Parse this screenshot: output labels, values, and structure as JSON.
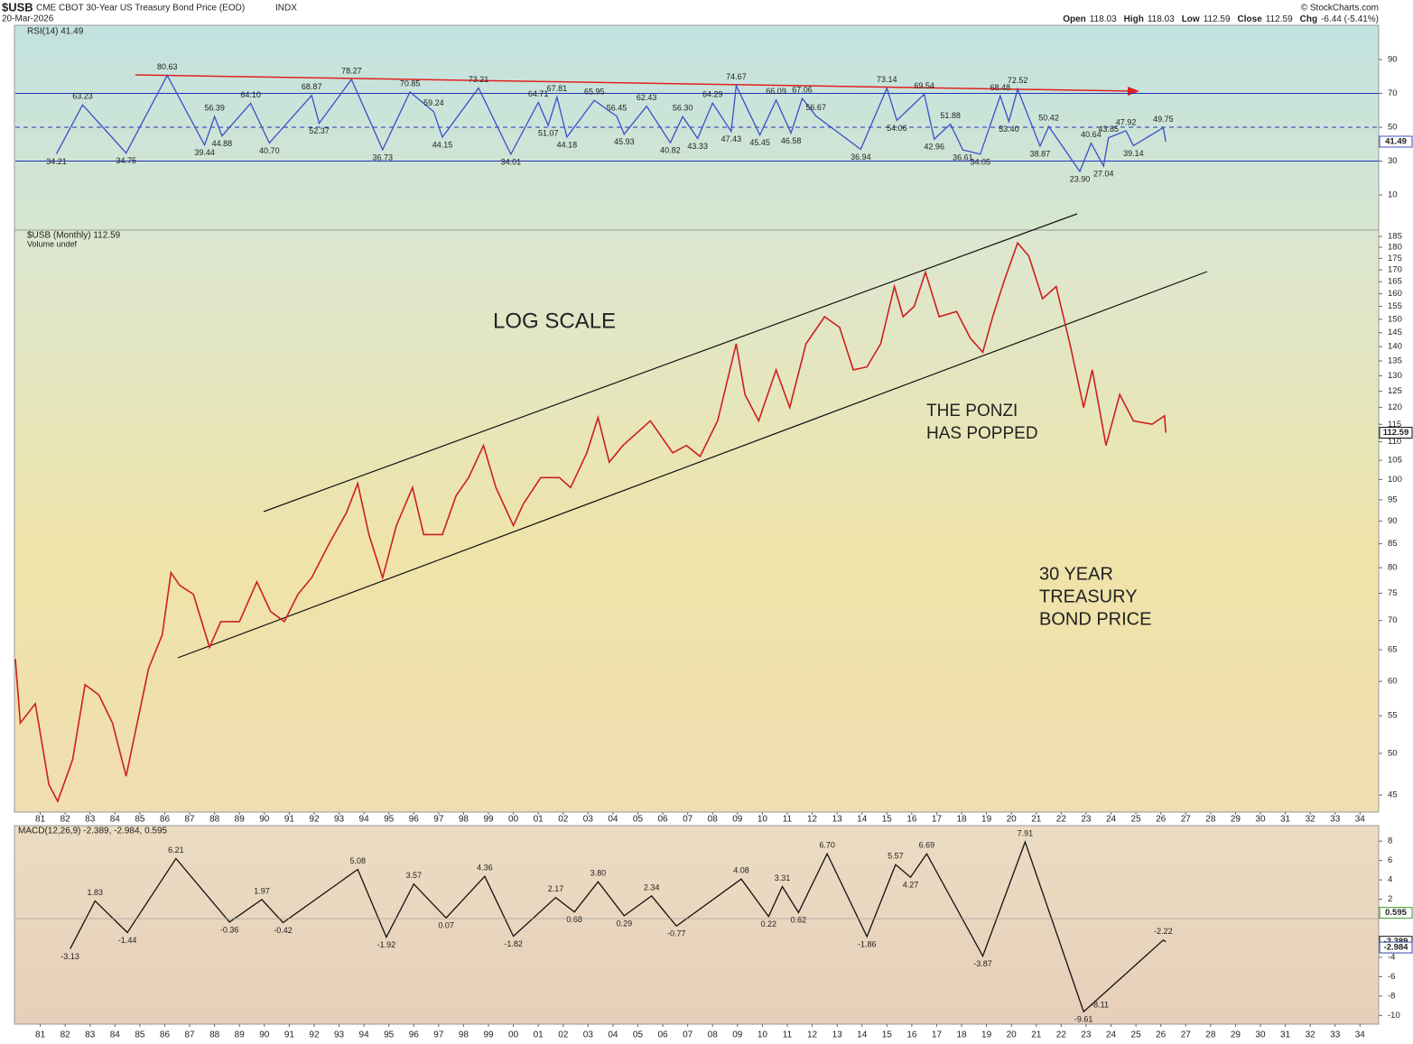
{
  "header": {
    "symbol": "$USB",
    "description": "CME CBOT 30-Year US Treasury Bond Price (EOD)",
    "exchange": "INDX",
    "date": "20-Mar-2026",
    "quote": [
      {
        "label": "Open",
        "value": "118.03"
      },
      {
        "label": "High",
        "value": "118.03"
      },
      {
        "label": "Low",
        "value": "112.59"
      },
      {
        "label": "Close",
        "value": "112.59"
      },
      {
        "label": "Chg",
        "value": "-6.44 (-5.41%)"
      }
    ],
    "copyright": "© StockCharts.com"
  },
  "chart_data": [
    {
      "type": "line",
      "title": "RSI(14) 41.49",
      "color": "#3a4fc8",
      "ylim": [
        -10.8,
        110.3
      ],
      "yticks": [
        10,
        30,
        50,
        70,
        90
      ],
      "levels": [
        30,
        50,
        70
      ],
      "x": [
        1981.65,
        1982.7,
        1984.45,
        1986.1,
        1987.6,
        1988.0,
        1988.3,
        1989.45,
        1990.2,
        1991.9,
        1992.2,
        1993.5,
        1994.75,
        1995.85,
        1996.8,
        1997.15,
        1998.6,
        1999.9,
        2001.0,
        2001.4,
        2001.75,
        2002.15,
        2003.25,
        2004.15,
        2004.45,
        2005.35,
        2006.3,
        2006.8,
        2007.4,
        2008.0,
        2008.75,
        2008.95,
        2009.9,
        2010.55,
        2011.15,
        2011.6,
        2012.15,
        2013.95,
        2015.0,
        2015.4,
        2016.5,
        2016.9,
        2017.55,
        2018.05,
        2018.75,
        2019.55,
        2019.9,
        2020.25,
        2021.15,
        2021.5,
        2022.75,
        2023.2,
        2023.7,
        2023.9,
        2024.6,
        2024.9,
        2026.1,
        2026.2
      ],
      "values": [
        34.21,
        63.23,
        34.75,
        80.63,
        39.44,
        56.39,
        44.88,
        64.1,
        40.7,
        68.87,
        52.37,
        78.27,
        36.73,
        70.85,
        59.24,
        44.15,
        73.21,
        34.01,
        64.71,
        51.07,
        67.81,
        44.18,
        65.95,
        56.45,
        45.93,
        62.43,
        40.82,
        56.3,
        43.33,
        64.29,
        47.43,
        74.67,
        45.45,
        66.09,
        46.58,
        67.06,
        56.67,
        36.94,
        73.14,
        54.06,
        69.54,
        42.96,
        51.88,
        36.61,
        34.05,
        68.48,
        53.4,
        72.52,
        38.87,
        50.42,
        23.9,
        40.64,
        27.04,
        43.85,
        47.92,
        39.14,
        49.75,
        41.49
      ],
      "value_labels": [
        "34.21",
        "63.23",
        "34.75",
        "80.63",
        "39.44",
        "56.39",
        "44.88",
        "64.10",
        "40.70",
        "68.87",
        "52.37",
        "78.27",
        "36.73",
        "70.85",
        "59.24",
        "44.15",
        "73.21",
        "34.01",
        "64.71",
        "51.07",
        "67.81",
        "44.18",
        "65.95",
        "56.45",
        "45.93",
        "62.43",
        "40.82",
        "56.30",
        "43.33",
        "64.29",
        "47.43",
        "74.67",
        "45.45",
        "66.09",
        "46.58",
        "67.06",
        "56.67",
        "36.94",
        "73.14",
        "54.06",
        "69.54",
        "42.96",
        "51.88",
        "36.61",
        "34.05",
        "68.48",
        "53.40",
        "72.52",
        "38.87",
        "50.42",
        "23.90",
        "40.64",
        "27.04",
        "43.85",
        "47.92",
        "39.14",
        "49.75",
        "41.49"
      ]
    },
    {
      "type": "line",
      "title": "$USB (Monthly) 112.59",
      "subtitle": "Volume undef",
      "color": "#cc1f1f",
      "log_scale": true,
      "ylim": [
        43.1,
        188
      ],
      "yticks": [
        45,
        50,
        55,
        60,
        65,
        70,
        75,
        80,
        85,
        90,
        95,
        100,
        105,
        110,
        115,
        120,
        125,
        130,
        135,
        140,
        145,
        150,
        155,
        160,
        165,
        170,
        175,
        180,
        185
      ],
      "xlim": [
        1980,
        2034.75
      ],
      "xticks": [
        {
          "value": 1981,
          "label": "81"
        },
        {
          "value": 1982,
          "label": "82"
        },
        {
          "value": 1983,
          "label": "83"
        },
        {
          "value": 1984,
          "label": "84"
        },
        {
          "value": 1985,
          "label": "85"
        },
        {
          "value": 1986,
          "label": "86"
        },
        {
          "value": 1987,
          "label": "87"
        },
        {
          "value": 1988,
          "label": "88"
        },
        {
          "value": 1989,
          "label": "89"
        },
        {
          "value": 1990,
          "label": "90"
        },
        {
          "value": 1991,
          "label": "91"
        },
        {
          "value": 1992,
          "label": "92"
        },
        {
          "value": 1993,
          "label": "93"
        },
        {
          "value": 1994,
          "label": "94"
        },
        {
          "value": 1995,
          "label": "95"
        },
        {
          "value": 1996,
          "label": "96"
        },
        {
          "value": 1997,
          "label": "97"
        },
        {
          "value": 1998,
          "label": "98"
        },
        {
          "value": 1999,
          "label": "99"
        },
        {
          "value": 2000,
          "label": "00"
        },
        {
          "value": 2001,
          "label": "01"
        },
        {
          "value": 2002,
          "label": "02"
        },
        {
          "value": 2003,
          "label": "03"
        },
        {
          "value": 2004,
          "label": "04"
        },
        {
          "value": 2005,
          "label": "05"
        },
        {
          "value": 2006,
          "label": "06"
        },
        {
          "value": 2007,
          "label": "07"
        },
        {
          "value": 2008,
          "label": "08"
        },
        {
          "value": 2009,
          "label": "09"
        },
        {
          "value": 2010,
          "label": "10"
        },
        {
          "value": 2011,
          "label": "11"
        },
        {
          "value": 2012,
          "label": "12"
        },
        {
          "value": 2013,
          "label": "13"
        },
        {
          "value": 2014,
          "label": "14"
        },
        {
          "value": 2015,
          "label": "15"
        },
        {
          "value": 2016,
          "label": "16"
        },
        {
          "value": 2017,
          "label": "17"
        },
        {
          "value": 2018,
          "label": "18"
        },
        {
          "value": 2019,
          "label": "19"
        },
        {
          "value": 2020,
          "label": "20"
        },
        {
          "value": 2021,
          "label": "21"
        },
        {
          "value": 2022,
          "label": "22"
        },
        {
          "value": 2023,
          "label": "23"
        },
        {
          "value": 2024,
          "label": "24"
        },
        {
          "value": 2025,
          "label": "25"
        },
        {
          "value": 2026,
          "label": "26"
        },
        {
          "value": 2027,
          "label": "27"
        },
        {
          "value": 2028,
          "label": "28"
        },
        {
          "value": 2029,
          "label": "29"
        },
        {
          "value": 2030,
          "label": "30"
        },
        {
          "value": 2031,
          "label": "31"
        },
        {
          "value": 2032,
          "label": "32"
        },
        {
          "value": 2033,
          "label": "33"
        },
        {
          "value": 2034,
          "label": "34"
        }
      ],
      "x": [
        1980.0,
        1980.2,
        1980.8,
        1981.35,
        1981.7,
        1982.3,
        1982.8,
        1983.35,
        1983.9,
        1984.45,
        1984.8,
        1985.35,
        1985.9,
        1986.25,
        1986.6,
        1987.15,
        1987.8,
        1988.25,
        1989.0,
        1989.7,
        1990.25,
        1990.8,
        1991.35,
        1991.9,
        1992.6,
        1993.3,
        1993.75,
        1994.2,
        1994.75,
        1995.3,
        1995.95,
        1996.4,
        1997.15,
        1997.7,
        1998.2,
        1998.8,
        1999.3,
        2000.0,
        2000.4,
        2001.1,
        2001.85,
        2002.3,
        2002.95,
        2003.4,
        2003.85,
        2004.4,
        2005.5,
        2006.4,
        2006.95,
        2007.5,
        2008.2,
        2008.95,
        2009.3,
        2009.85,
        2010.55,
        2011.1,
        2011.75,
        2012.5,
        2013.1,
        2013.65,
        2014.2,
        2014.75,
        2015.3,
        2015.65,
        2016.1,
        2016.55,
        2017.1,
        2017.8,
        2018.35,
        2018.85,
        2019.25,
        2019.7,
        2020.25,
        2020.7,
        2021.25,
        2021.8,
        2022.35,
        2022.9,
        2023.25,
        2023.8,
        2024.35,
        2024.9,
        2025.65,
        2026.15,
        2026.2
      ],
      "values": [
        63.5,
        54,
        56.7,
        46.2,
        44.3,
        49.2,
        59.5,
        58,
        54,
        47.2,
        52.5,
        62,
        67.5,
        79,
        76.5,
        74.8,
        65.4,
        69.8,
        69.8,
        77.2,
        71.6,
        69.8,
        74.8,
        78,
        85,
        92,
        99,
        87,
        78,
        89,
        98,
        87,
        87,
        96,
        100.5,
        109,
        98,
        89,
        94,
        100.5,
        100.5,
        98,
        107,
        117,
        104.5,
        109,
        116,
        107,
        109,
        106,
        116,
        141,
        124,
        116,
        132,
        120,
        141,
        151,
        147,
        132,
        133,
        141,
        163,
        151,
        155,
        169,
        151,
        153,
        143,
        138,
        151,
        165,
        182,
        176,
        158,
        163,
        141,
        120,
        132,
        109,
        124,
        116,
        115,
        117.5,
        112.59
      ],
      "annotations": [
        [
          "LOG SCALE"
        ],
        [
          "THE PONZI",
          "HAS POPPED"
        ],
        [
          "30 YEAR",
          "TREASURY",
          "BOND PRICE"
        ]
      ]
    },
    {
      "type": "line",
      "title": "MACD(12,26,9) -2.389, -2.984, 0.595",
      "color": "#111111",
      "ylim": [
        -10.9,
        9.6
      ],
      "yticks": [
        8,
        6,
        4,
        2,
        -4,
        -6,
        -8,
        -10
      ],
      "x": [
        1982.2,
        1983.2,
        1984.5,
        1986.45,
        1988.6,
        1989.9,
        1990.75,
        1993.75,
        1994.9,
        1996.0,
        1997.3,
        1998.85,
        2000.0,
        2001.7,
        2002.45,
        2003.4,
        2004.45,
        2005.55,
        2006.55,
        2009.15,
        2010.25,
        2010.8,
        2011.45,
        2012.6,
        2014.2,
        2015.35,
        2015.95,
        2016.6,
        2018.85,
        2020.55,
        2022.9,
        2023.55,
        2026.1,
        2026.2
      ],
      "values": [
        -3.13,
        1.83,
        -1.44,
        6.21,
        -0.36,
        1.97,
        -0.42,
        5.08,
        -1.92,
        3.57,
        0.07,
        4.36,
        -1.82,
        2.17,
        0.68,
        3.8,
        0.29,
        2.34,
        -0.77,
        4.08,
        0.22,
        3.31,
        0.62,
        6.7,
        -1.86,
        5.57,
        4.27,
        6.69,
        -3.87,
        7.91,
        -9.61,
        -8.11,
        -2.22,
        -2.389
      ],
      "value_labels": [
        "-3.13",
        "1.83",
        "-1.44",
        "6.21",
        "-0.36",
        "1.97",
        "-0.42",
        "5.08",
        "-1.92",
        "3.57",
        "0.07",
        "4.36",
        "-1.82",
        "2.17",
        "0.68",
        "3.80",
        "0.29",
        "2.34",
        "-0.77",
        "4.08",
        "0.22",
        "3.31",
        "0.62",
        "6.70",
        "-1.86",
        "5.57",
        "4.27",
        "6.69",
        "-3.87",
        "7.91",
        "-9.61",
        "-8.11",
        "-2.22",
        "-2.389"
      ],
      "signal_last": -2.984,
      "histogram_last": 0.595
    }
  ]
}
